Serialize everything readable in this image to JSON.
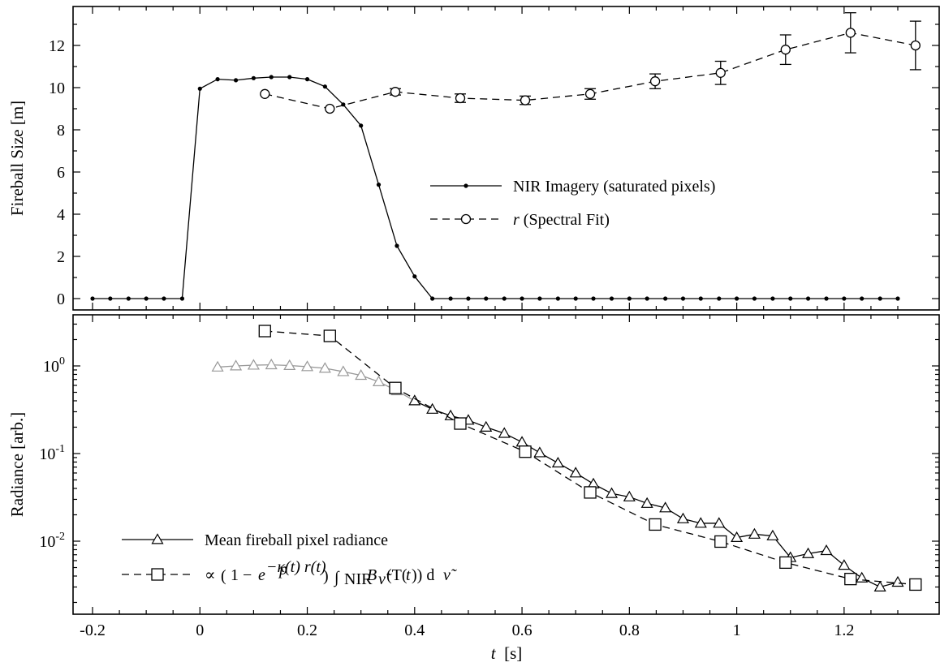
{
  "chart_data": [
    {
      "type": "line",
      "panel": "top",
      "ylabel": "Fireball Size [m]",
      "xlim": [
        -0.2,
        1.3
      ],
      "ylim": [
        0,
        13.5
      ],
      "yticks": [
        0,
        2,
        4,
        6,
        8,
        10,
        12
      ],
      "ytick_labels": [
        "0",
        "2",
        "4",
        "6",
        "8",
        "10",
        "12"
      ],
      "grid": false,
      "legend_position": "center-right",
      "series": [
        {
          "name": "NIR Imagery (saturated pixels)",
          "style": "solid",
          "marker": "dot",
          "color": "#000000",
          "x": [
            -0.2,
            -0.167,
            -0.133,
            -0.1,
            -0.067,
            -0.033,
            0.0,
            0.033,
            0.067,
            0.1,
            0.133,
            0.167,
            0.2,
            0.233,
            0.267,
            0.3,
            0.333,
            0.367,
            0.4,
            0.433,
            0.467,
            0.5,
            0.533,
            0.567,
            0.6,
            0.633,
            0.667,
            0.7,
            0.733,
            0.767,
            0.8,
            0.833,
            0.867,
            0.9,
            0.933,
            0.967,
            1.0,
            1.033,
            1.067,
            1.1,
            1.133,
            1.167,
            1.2,
            1.233,
            1.267,
            1.3
          ],
          "y": [
            0,
            0,
            0,
            0,
            0,
            0,
            9.95,
            10.4,
            10.35,
            10.45,
            10.5,
            10.5,
            10.4,
            10.05,
            9.2,
            8.2,
            5.4,
            2.5,
            1.05,
            0,
            0,
            0,
            0,
            0,
            0,
            0,
            0,
            0,
            0,
            0,
            0,
            0,
            0,
            0,
            0,
            0,
            0,
            0,
            0,
            0,
            0,
            0,
            0,
            0,
            0,
            0
          ]
        },
        {
          "name": "(Spectral Fit)",
          "name_italic_prefix": "r",
          "style": "dashed",
          "marker": "open-circle",
          "color": "#000000",
          "x": [
            0.121,
            0.242,
            0.364,
            0.485,
            0.606,
            0.727,
            0.848,
            0.97,
            1.091,
            1.212,
            1.333
          ],
          "y": [
            9.7,
            9.0,
            9.8,
            9.5,
            9.4,
            9.7,
            10.3,
            10.7,
            11.8,
            12.6,
            12.0
          ],
          "yerr": [
            0,
            0,
            0.15,
            0.2,
            0.2,
            0.25,
            0.35,
            0.55,
            0.7,
            0.95,
            1.15
          ]
        }
      ]
    },
    {
      "type": "line",
      "panel": "bottom",
      "xlabel": "t  [s]",
      "ylabel": "Radiance [arb.]",
      "yscale": "log",
      "xlim": [
        -0.2,
        1.3
      ],
      "ylim": [
        0.0018,
        3.5
      ],
      "xticks": [
        -0.2,
        0,
        0.2,
        0.4,
        0.6,
        0.8,
        1.0,
        1.2
      ],
      "xtick_labels": [
        "-0.2",
        "0",
        "0.2",
        "0.4",
        "0.6",
        "0.8",
        "1",
        "1.2"
      ],
      "yticks": [
        1,
        0.1,
        0.01
      ],
      "ytick_labels": [
        {
          "base": "10",
          "exp": "0"
        },
        {
          "base": "10",
          "exp": "-1"
        },
        {
          "base": "10",
          "exp": "-2"
        }
      ],
      "grid": false,
      "legend_position": "lower-left",
      "series": [
        {
          "name": "Mean fireball pixel radiance",
          "style": "solid",
          "marker": "open-triangle",
          "color": "#000000",
          "gray_color": "#999999",
          "gray_until_x": 0.4,
          "x": [
            0.033,
            0.067,
            0.1,
            0.133,
            0.167,
            0.2,
            0.233,
            0.267,
            0.3,
            0.333,
            0.367,
            0.4,
            0.433,
            0.467,
            0.5,
            0.533,
            0.567,
            0.6,
            0.633,
            0.667,
            0.7,
            0.733,
            0.767,
            0.8,
            0.833,
            0.867,
            0.9,
            0.933,
            0.967,
            1.0,
            1.033,
            1.067,
            1.1,
            1.133,
            1.167,
            1.2,
            1.233,
            1.267,
            1.3
          ],
          "y": [
            0.97,
            1.0,
            1.02,
            1.03,
            1.01,
            0.98,
            0.94,
            0.86,
            0.78,
            0.66,
            0.52,
            0.4,
            0.32,
            0.27,
            0.24,
            0.2,
            0.17,
            0.135,
            0.102,
            0.078,
            0.06,
            0.045,
            0.035,
            0.032,
            0.027,
            0.024,
            0.018,
            0.016,
            0.016,
            0.011,
            0.012,
            0.0115,
            0.0065,
            0.0072,
            0.0078,
            0.0053,
            0.0038,
            0.003,
            0.0034
          ]
        },
        {
          "name": "∝ (1 − e^(−κp(t) r(t))) ∫NIR Bν̃(T(t)) dν̃",
          "style": "dashed",
          "marker": "open-square",
          "color": "#000000",
          "x": [
            0.121,
            0.242,
            0.364,
            0.485,
            0.606,
            0.727,
            0.848,
            0.97,
            1.091,
            1.212,
            1.333
          ],
          "y": [
            2.5,
            2.2,
            0.56,
            0.22,
            0.105,
            0.036,
            0.0155,
            0.0099,
            0.0057,
            0.0037,
            0.0032
          ]
        }
      ]
    }
  ]
}
